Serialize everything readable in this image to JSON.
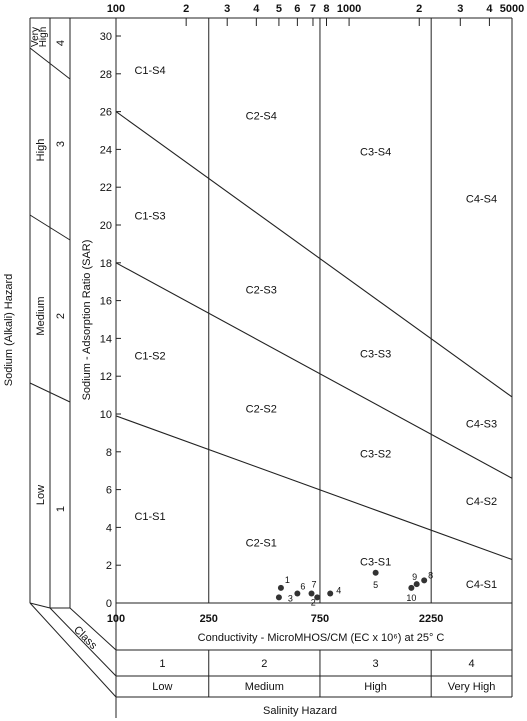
{
  "chart_data": {
    "type": "scatter",
    "title": "",
    "xlabel": "Conductivity - MicroMHOS/CM (EC x 10⁶) at 25° C",
    "ylabel": "Sodium - Adsorption Ratio (SAR)",
    "x_scale": "log",
    "xlim": [
      100,
      5000
    ],
    "ylim": [
      0,
      31
    ],
    "x_top_ticks": [
      {
        "v": 100,
        "label": "100"
      },
      {
        "v": 200,
        "label": "2"
      },
      {
        "v": 300,
        "label": "3"
      },
      {
        "v": 400,
        "label": "4"
      },
      {
        "v": 500,
        "label": "5"
      },
      {
        "v": 600,
        "label": "6"
      },
      {
        "v": 700,
        "label": "7"
      },
      {
        "v": 800,
        "label": "8"
      },
      {
        "v": 1000,
        "label": "1000"
      },
      {
        "v": 2000,
        "label": "2"
      },
      {
        "v": 3000,
        "label": "3"
      },
      {
        "v": 4000,
        "label": "4"
      },
      {
        "v": 5000,
        "label": "5000"
      }
    ],
    "x_bottom_ticks": [
      {
        "v": 100,
        "label": "100"
      },
      {
        "v": 250,
        "label": "250"
      },
      {
        "v": 750,
        "label": "750"
      },
      {
        "v": 2250,
        "label": "2250"
      }
    ],
    "y_ticks": [
      0,
      2,
      4,
      6,
      8,
      10,
      12,
      14,
      16,
      18,
      20,
      22,
      24,
      26,
      28,
      30
    ],
    "salinity_boundaries": [
      250,
      750,
      2250
    ],
    "sar_lines": [
      {
        "name": "S1-S2",
        "start": [
          100,
          9.9
        ],
        "end": [
          5000,
          2.3
        ]
      },
      {
        "name": "S2-S3",
        "start": [
          100,
          18.0
        ],
        "end": [
          5000,
          6.6
        ]
      },
      {
        "name": "S3-S4",
        "start": [
          100,
          26.0
        ],
        "end": [
          5000,
          10.9
        ]
      }
    ],
    "region_labels": [
      {
        "text": "C1-S4",
        "x": 140,
        "y": 28.2
      },
      {
        "text": "C1-S3",
        "x": 140,
        "y": 20.5
      },
      {
        "text": "C1-S2",
        "x": 140,
        "y": 13.1
      },
      {
        "text": "C1-S1",
        "x": 140,
        "y": 4.6
      },
      {
        "text": "C2-S4",
        "x": 420,
        "y": 25.8
      },
      {
        "text": "C2-S3",
        "x": 420,
        "y": 16.6
      },
      {
        "text": "C2-S2",
        "x": 420,
        "y": 10.3
      },
      {
        "text": "C2-S1",
        "x": 420,
        "y": 3.2
      },
      {
        "text": "C3-S4",
        "x": 1300,
        "y": 23.9
      },
      {
        "text": "C3-S3",
        "x": 1300,
        "y": 13.2
      },
      {
        "text": "C3-S2",
        "x": 1300,
        "y": 7.9
      },
      {
        "text": "C3-S1",
        "x": 1300,
        "y": 2.2
      },
      {
        "text": "C4-S4",
        "x": 3700,
        "y": 21.4
      },
      {
        "text": "C4-S3",
        "x": 3700,
        "y": 9.5
      },
      {
        "text": "C4-S2",
        "x": 3700,
        "y": 5.4
      },
      {
        "text": "C4-S1",
        "x": 3700,
        "y": 1.0
      }
    ],
    "points": [
      {
        "label": "1",
        "x": 510,
        "y": 0.8
      },
      {
        "label": "2",
        "x": 730,
        "y": 0.3
      },
      {
        "label": "3",
        "x": 500,
        "y": 0.3
      },
      {
        "label": "4",
        "x": 830,
        "y": 0.5
      },
      {
        "label": "5",
        "x": 1300,
        "y": 1.6
      },
      {
        "label": "6",
        "x": 600,
        "y": 0.5
      },
      {
        "label": "7",
        "x": 690,
        "y": 0.5
      },
      {
        "label": "8",
        "x": 2100,
        "y": 1.2
      },
      {
        "label": "9",
        "x": 1950,
        "y": 1.0
      },
      {
        "label": "10",
        "x": 1850,
        "y": 0.8
      }
    ],
    "sodium_hazard": {
      "title": "Sodium (Alkali) Hazard",
      "classes": [
        {
          "num": "1",
          "name": "Low"
        },
        {
          "num": "2",
          "name": "Medium"
        },
        {
          "num": "3",
          "name": "High"
        },
        {
          "num": "4",
          "name": "Very High"
        }
      ]
    },
    "salinity_hazard": {
      "title": "Salinity Hazard",
      "class_label": "Class",
      "classes": [
        {
          "num": "1",
          "name": "Low"
        },
        {
          "num": "2",
          "name": "Medium"
        },
        {
          "num": "3",
          "name": "High"
        },
        {
          "num": "4",
          "name": "Very High"
        }
      ]
    }
  }
}
